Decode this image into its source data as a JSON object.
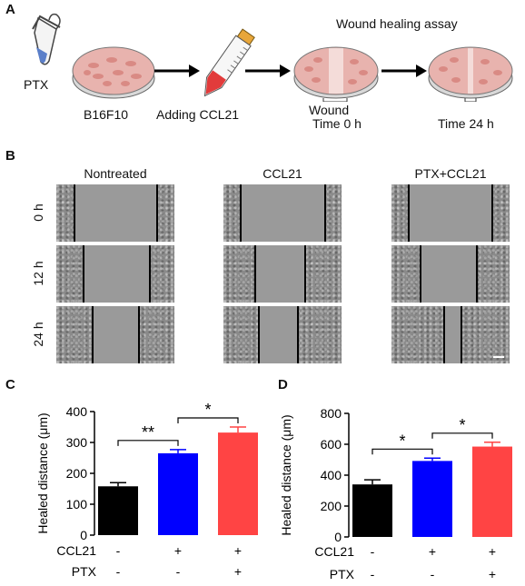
{
  "panel_A": {
    "label": "A",
    "ptx_label": "PTX",
    "b16_label": "B16F10",
    "adding_label": "Adding CCL21",
    "assay_title": "Wound healing assay",
    "wound_label": "Wound",
    "time0_label": "Time 0 h",
    "time24_label": "Time 24 h"
  },
  "panel_B": {
    "label": "B",
    "columns": [
      "Nontreated",
      "CCL21",
      "PTX+CCL21"
    ],
    "rows": [
      "0 h",
      "12 h",
      "24 h"
    ]
  },
  "colors": {
    "black": "#000000",
    "blue": "#0000ff",
    "red": "#ff4444"
  },
  "chart_data": [
    {
      "panel": "C",
      "type": "bar",
      "ylabel": "Healed distance (μm)",
      "ylim": [
        0,
        400
      ],
      "yticks": [
        0,
        100,
        200,
        300,
        400
      ],
      "categories": [
        "CCL21 - / PTX -",
        "CCL21 + / PTX -",
        "CCL21 + / PTX +"
      ],
      "values": [
        158,
        265,
        332
      ],
      "errors": [
        12,
        12,
        18
      ],
      "bar_colors": [
        "#000000",
        "#0000ff",
        "#ff4444"
      ],
      "row_labels": [
        "CCL21",
        "PTX"
      ],
      "row_values": [
        [
          "-",
          "+",
          "+"
        ],
        [
          "-",
          "-",
          "+"
        ]
      ],
      "significance": [
        {
          "from": 0,
          "to": 1,
          "label": "**"
        },
        {
          "from": 1,
          "to": 2,
          "label": "*"
        }
      ]
    },
    {
      "panel": "D",
      "type": "bar",
      "ylabel": "Healed distance (μm)",
      "ylim": [
        0,
        800
      ],
      "yticks": [
        0,
        200,
        400,
        600,
        800
      ],
      "categories": [
        "CCL21 - / PTX -",
        "CCL21 + / PTX -",
        "CCL21 + / PTX +"
      ],
      "values": [
        340,
        492,
        585
      ],
      "errors": [
        30,
        18,
        28
      ],
      "bar_colors": [
        "#000000",
        "#0000ff",
        "#ff4444"
      ],
      "row_labels": [
        "CCL21",
        "PTX"
      ],
      "row_values": [
        [
          "-",
          "+",
          "+"
        ],
        [
          "-",
          "-",
          "+"
        ]
      ],
      "significance": [
        {
          "from": 0,
          "to": 1,
          "label": "*"
        },
        {
          "from": 1,
          "to": 2,
          "label": "*"
        }
      ]
    }
  ]
}
